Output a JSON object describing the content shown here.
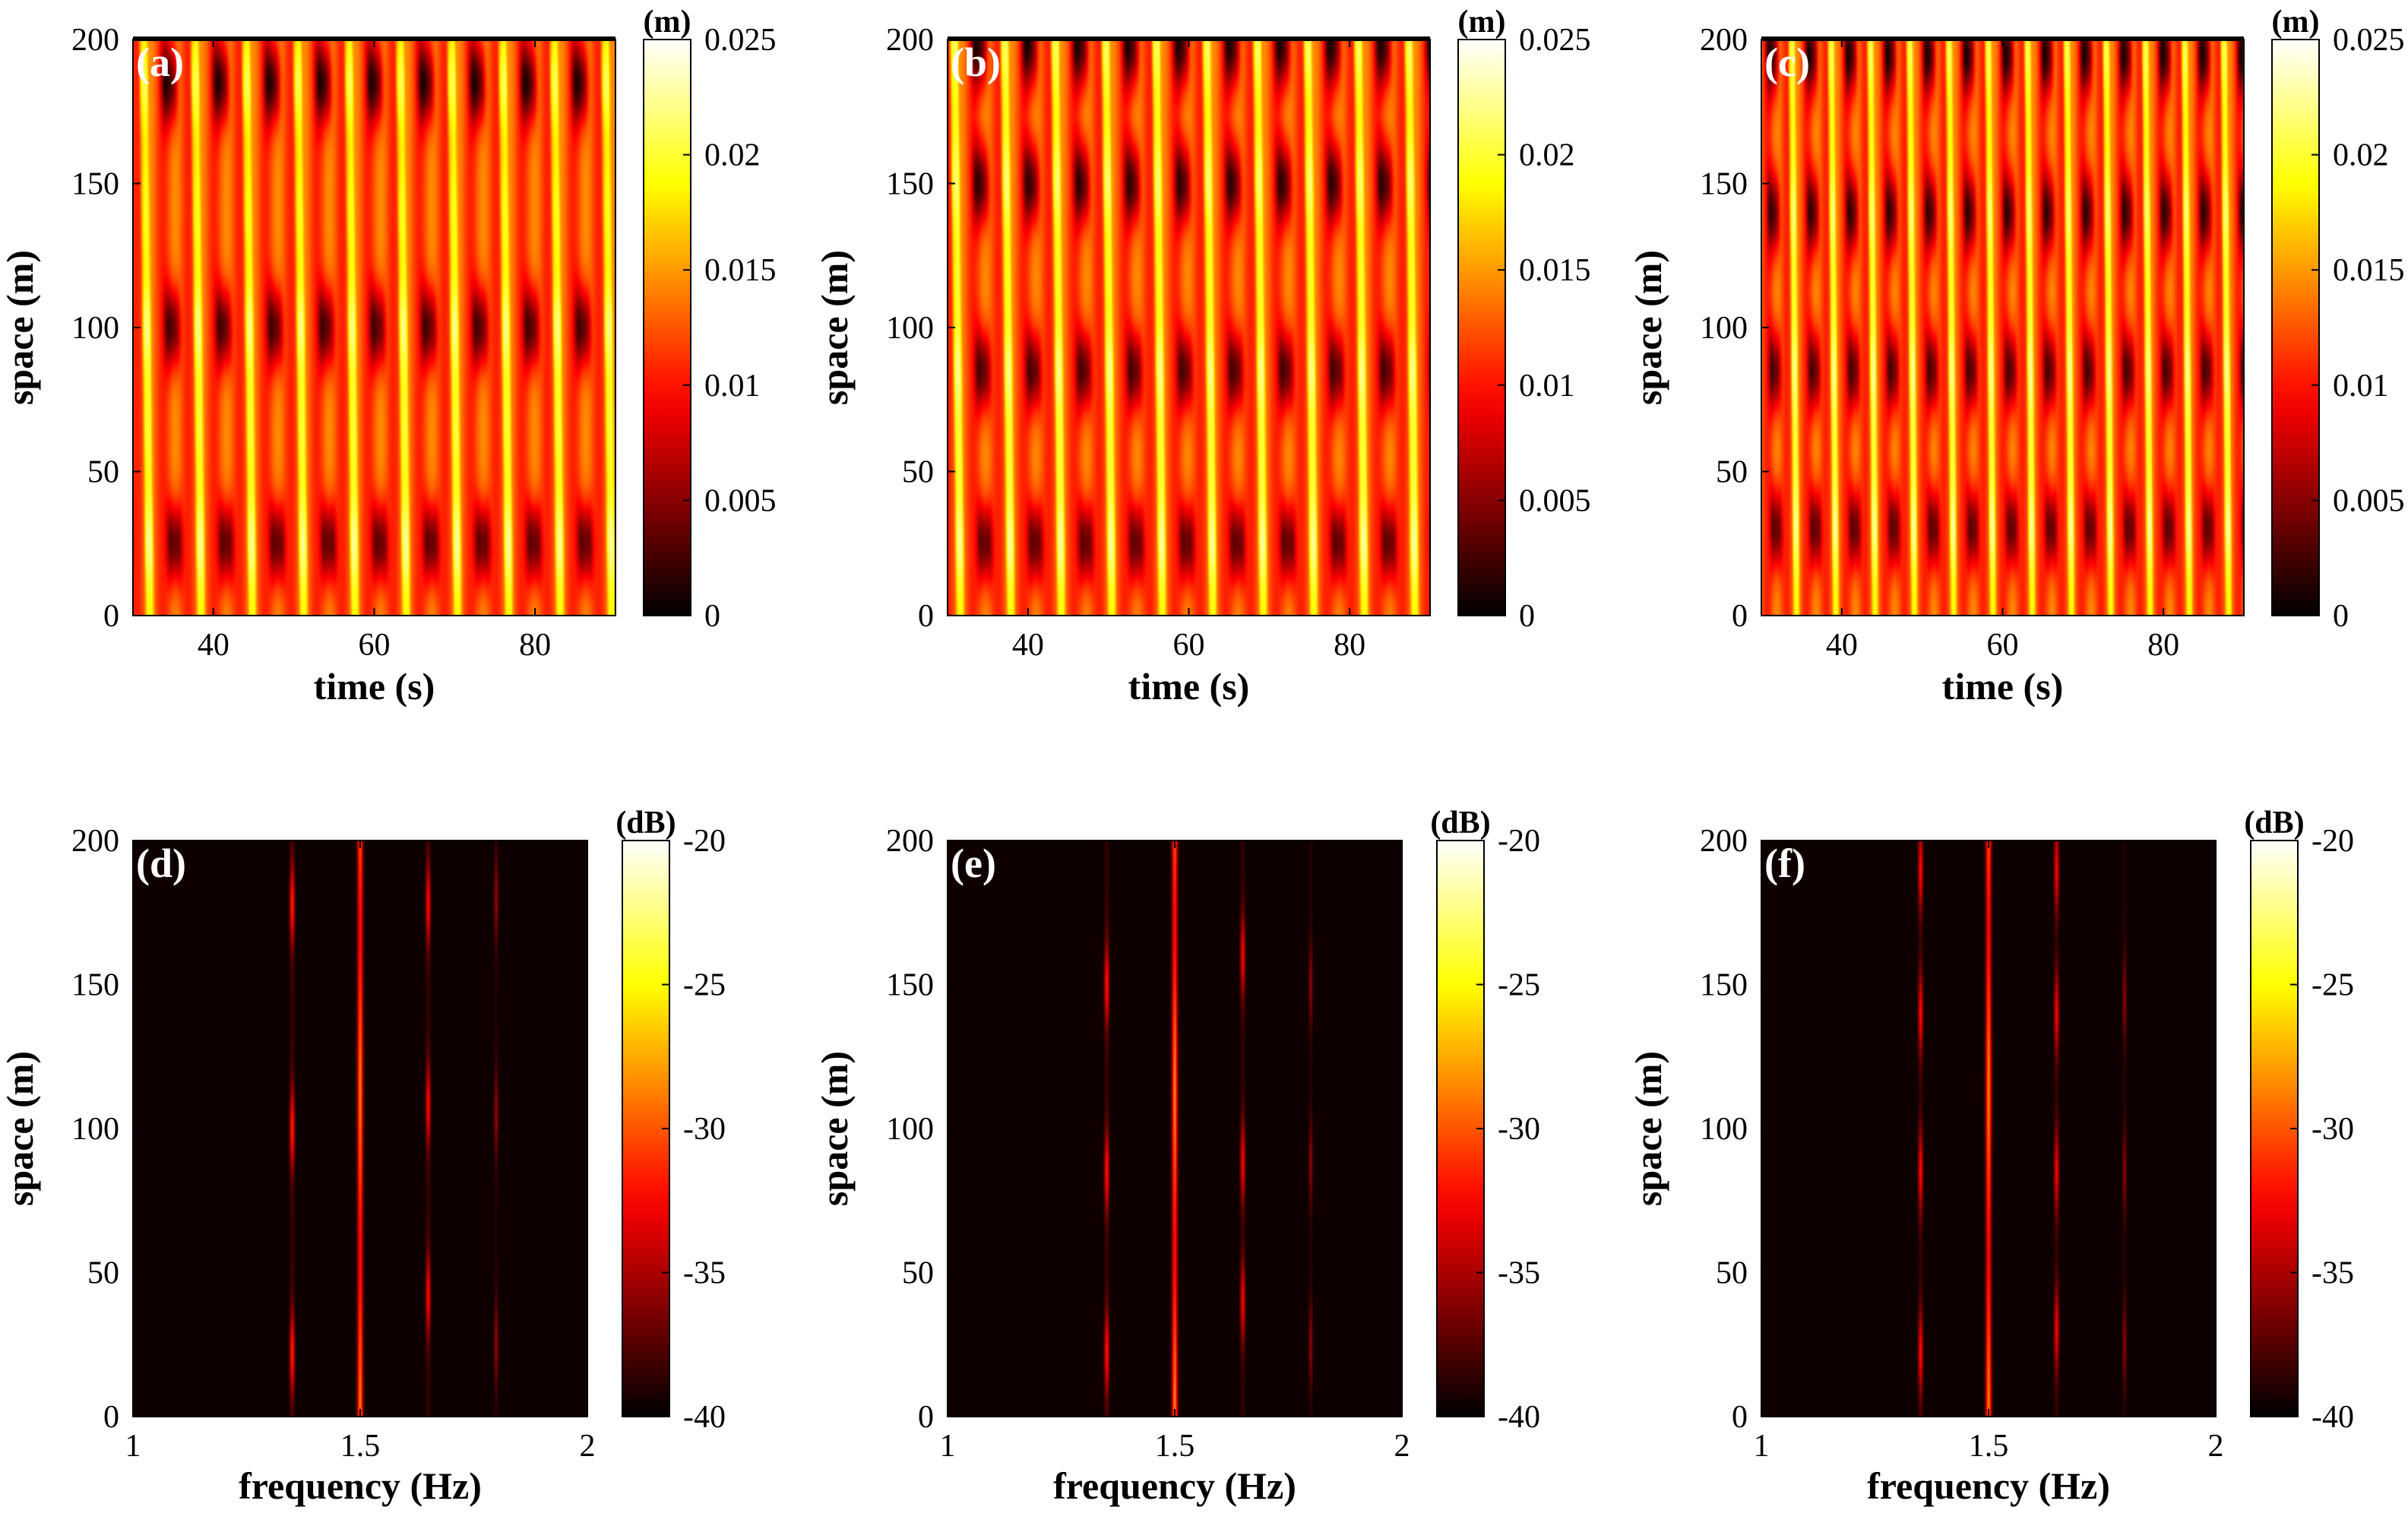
{
  "chart_data": [
    {
      "type": "heatmap",
      "panel_label": "(a)",
      "xlabel": "time (s)",
      "ylabel": "space (m)",
      "xlim": [
        30,
        90
      ],
      "ylim": [
        0,
        200
      ],
      "xticks": [
        "40",
        "60",
        "80"
      ],
      "xtick_values": [
        40,
        60,
        80
      ],
      "yticks": [
        "0",
        "50",
        "100",
        "150",
        "200"
      ],
      "ytick_values": [
        0,
        50,
        100,
        150,
        200
      ],
      "colorbar": {
        "unit": "(m)",
        "range": [
          0,
          0.025
        ],
        "ticks": [
          "0",
          "0.005",
          "0.01",
          "0.015",
          "0.02",
          "0.025"
        ],
        "tick_values": [
          0,
          0.005,
          0.01,
          0.015,
          0.02,
          0.025
        ]
      },
      "colormap": "hot",
      "pattern": {
        "kind": "wave",
        "period_s": 6.4,
        "antinodes_m": [
          25,
          100,
          185
        ],
        "nodes_m": [
          65,
          140
        ]
      }
    },
    {
      "type": "heatmap",
      "panel_label": "(b)",
      "xlabel": "time (s)",
      "ylabel": "space (m)",
      "xlim": [
        30,
        90
      ],
      "ylim": [
        0,
        200
      ],
      "xticks": [
        "40",
        "60",
        "80"
      ],
      "xtick_values": [
        40,
        60,
        80
      ],
      "yticks": [
        "0",
        "50",
        "100",
        "150",
        "200"
      ],
      "ytick_values": [
        0,
        50,
        100,
        150,
        200
      ],
      "colorbar": {
        "unit": "(m)",
        "range": [
          0,
          0.025
        ],
        "ticks": [
          "0",
          "0.005",
          "0.01",
          "0.015",
          "0.02",
          "0.025"
        ],
        "tick_values": [
          0,
          0.005,
          0.01,
          0.015,
          0.02,
          0.025
        ]
      },
      "colormap": "hot",
      "pattern": {
        "kind": "wave",
        "period_s": 6.3,
        "antinodes_m": [
          25,
          85,
          150,
          198
        ],
        "nodes_m": [
          55,
          118,
          175
        ]
      }
    },
    {
      "type": "heatmap",
      "panel_label": "(c)",
      "xlabel": "time (s)",
      "ylabel": "space (m)",
      "xlim": [
        30,
        90
      ],
      "ylim": [
        0,
        200
      ],
      "xticks": [
        "40",
        "60",
        "80"
      ],
      "xtick_values": [
        40,
        60,
        80
      ],
      "yticks": [
        "0",
        "50",
        "100",
        "150",
        "200"
      ],
      "ytick_values": [
        0,
        50,
        100,
        150,
        200
      ],
      "colorbar": {
        "unit": "(m)",
        "range": [
          0,
          0.025
        ],
        "ticks": [
          "0",
          "0.005",
          "0.01",
          "0.015",
          "0.02",
          "0.025"
        ],
        "tick_values": [
          0,
          0.005,
          0.01,
          0.015,
          0.02,
          0.025
        ]
      },
      "colormap": "hot",
      "pattern": {
        "kind": "wave",
        "period_s": 4.9,
        "antinodes_m": [
          30,
          85,
          140,
          195
        ],
        "nodes_m": [
          58,
          112,
          168
        ]
      }
    },
    {
      "type": "heatmap",
      "panel_label": "(d)",
      "xlabel": "frequency (Hz)",
      "ylabel": "space (m)",
      "xlim": [
        1,
        2
      ],
      "ylim": [
        0,
        200
      ],
      "xticks": [
        "1",
        "1.5",
        "2"
      ],
      "xtick_values": [
        1,
        1.5,
        2
      ],
      "yticks": [
        "0",
        "50",
        "100",
        "150",
        "200"
      ],
      "ytick_values": [
        0,
        50,
        100,
        150,
        200
      ],
      "colorbar": {
        "unit": "(dB)",
        "range": [
          -40,
          -20
        ],
        "ticks": [
          "-40",
          "-35",
          "-30",
          "-25",
          "-20"
        ],
        "tick_values": [
          -40,
          -35,
          -30,
          -25,
          -20
        ]
      },
      "colormap": "hot",
      "pattern": {
        "kind": "spectrum",
        "lines": [
          {
            "freq_hz": 1.5,
            "strength": 0.55,
            "width_hz": 0.006,
            "ymax_m": 200
          },
          {
            "freq_hz": 1.35,
            "strength": 0.42,
            "width_hz": 0.005,
            "peaks_m": [
              22,
              100,
              178
            ]
          },
          {
            "freq_hz": 1.65,
            "strength": 0.38,
            "width_hz": 0.005,
            "peaks_m": [
              42,
              108,
              178
            ]
          },
          {
            "freq_hz": 1.8,
            "strength": 0.22,
            "width_hz": 0.004,
            "peaks_m": [
              25,
              105,
              180
            ]
          }
        ]
      }
    },
    {
      "type": "heatmap",
      "panel_label": "(e)",
      "xlabel": "frequency (Hz)",
      "ylabel": "space (m)",
      "xlim": [
        1,
        2
      ],
      "ylim": [
        0,
        200
      ],
      "xticks": [
        "1",
        "1.5",
        "2"
      ],
      "xtick_values": [
        1,
        1.5,
        2
      ],
      "yticks": [
        "0",
        "50",
        "100",
        "150",
        "200"
      ],
      "ytick_values": [
        0,
        50,
        100,
        150,
        200
      ],
      "colorbar": {
        "unit": "(dB)",
        "range": [
          -40,
          -20
        ],
        "ticks": [
          "-40",
          "-35",
          "-30",
          "-25",
          "-20"
        ],
        "tick_values": [
          -40,
          -35,
          -30,
          -25,
          -20
        ]
      },
      "colormap": "hot",
      "pattern": {
        "kind": "spectrum",
        "lines": [
          {
            "freq_hz": 1.5,
            "strength": 0.55,
            "width_hz": 0.006,
            "ymax_m": 200
          },
          {
            "freq_hz": 1.35,
            "strength": 0.4,
            "width_hz": 0.005,
            "peaks_m": [
              22,
              85,
              150
            ]
          },
          {
            "freq_hz": 1.65,
            "strength": 0.36,
            "width_hz": 0.005,
            "peaks_m": [
              40,
              88,
              160
            ]
          },
          {
            "freq_hz": 1.8,
            "strength": 0.2,
            "width_hz": 0.004,
            "peaks_m": [
              25,
              88,
              150
            ]
          }
        ]
      }
    },
    {
      "type": "heatmap",
      "panel_label": "(f)",
      "xlabel": "frequency (Hz)",
      "ylabel": "space (m)",
      "xlim": [
        1,
        2
      ],
      "ylim": [
        0,
        200
      ],
      "xticks": [
        "1",
        "1.5",
        "2"
      ],
      "xtick_values": [
        1,
        1.5,
        2
      ],
      "yticks": [
        "0",
        "50",
        "100",
        "150",
        "200"
      ],
      "ytick_values": [
        0,
        50,
        100,
        150,
        200
      ],
      "colorbar": {
        "unit": "(dB)",
        "range": [
          -40,
          -20
        ],
        "ticks": [
          "-40",
          "-35",
          "-30",
          "-25",
          "-20"
        ],
        "tick_values": [
          -40,
          -35,
          -30,
          -25,
          -20
        ]
      },
      "colormap": "hot",
      "pattern": {
        "kind": "spectrum",
        "lines": [
          {
            "freq_hz": 1.5,
            "strength": 0.55,
            "width_hz": 0.006,
            "ymax_m": 200
          },
          {
            "freq_hz": 1.35,
            "strength": 0.38,
            "width_hz": 0.005,
            "peaks_m": [
              22,
              85,
              140,
              190
            ]
          },
          {
            "freq_hz": 1.65,
            "strength": 0.36,
            "width_hz": 0.005,
            "peaks_m": [
              30,
              85,
              140,
              190
            ]
          },
          {
            "freq_hz": 1.8,
            "strength": 0.2,
            "width_hz": 0.004,
            "peaks_m": [
              25,
              85,
              145
            ]
          }
        ]
      }
    }
  ]
}
